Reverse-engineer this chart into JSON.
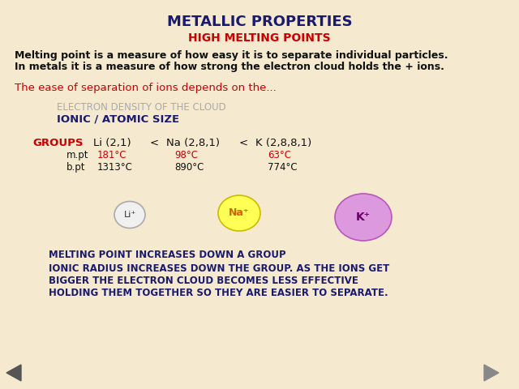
{
  "bg_color": "#f5ead0",
  "title": "METALLIC PROPERTIES",
  "title_color": "#1a1a6e",
  "subtitle": "HIGH MELTING POINTS",
  "subtitle_color": "#cc0000",
  "body_text_1": "Melting point is a measure of how easy it is to separate individual particles.",
  "body_text_2": "In metals it is a measure of how strong the electron cloud holds the + ions.",
  "body_color": "#111111",
  "ease_text": "The ease of separation of ions depends on the...",
  "ease_color": "#cc0000",
  "electron_text": "ELECTRON DENSITY OF THE CLOUD",
  "electron_color": "#aaaaaa",
  "ionic_text": "IONIC / ATOMIC SIZE",
  "ionic_color": "#1a1a6e",
  "groups_color": "#cc0000",
  "group_color": "#111111",
  "mpt_label_color": "#111111",
  "mpt_values": [
    "181°C",
    "98°C",
    "63°C"
  ],
  "mpt_color": "#cc0000",
  "bpt_color": "#111111",
  "bpt_values": [
    "1313°C",
    "890°C",
    "774°C"
  ],
  "li_circle_color": "#f0f0f0",
  "li_border_color": "#aaaaaa",
  "li_text": "Li⁺",
  "li_text_color": "#333333",
  "na_circle_color": "#ffff55",
  "na_border_color": "#ccbb00",
  "na_text": "Na⁺",
  "na_text_color": "#cc6600",
  "k_circle_color": "#dd99dd",
  "k_border_color": "#bb55bb",
  "k_text": "K⁺",
  "k_text_color": "#660066",
  "bottom_color_1": "#1a1a6e",
  "bottom_color_2": "#1a1a6e",
  "left_arrow_color": "#555555",
  "right_arrow_color": "#888888"
}
